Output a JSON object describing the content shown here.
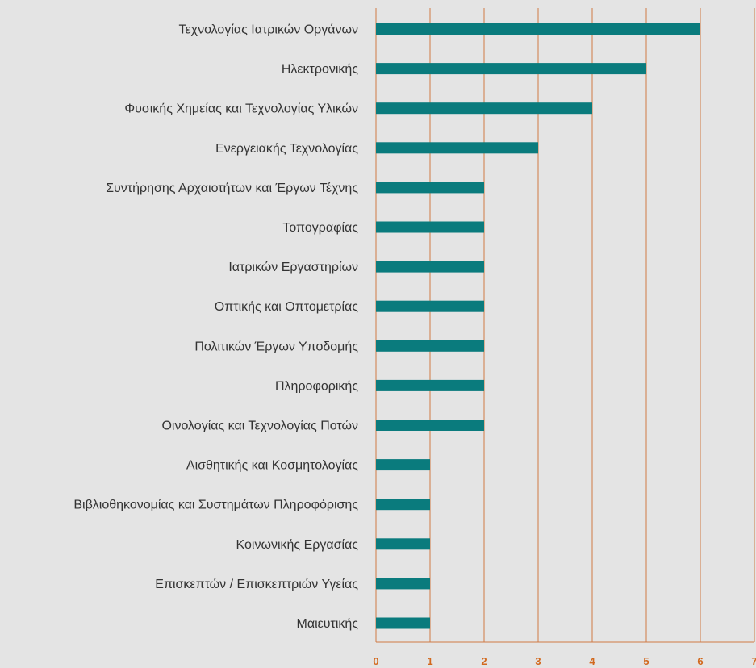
{
  "chart_data": {
    "type": "bar",
    "orientation": "horizontal",
    "categories": [
      "Τεχνολογίας Ιατρικών Οργάνων",
      "Ηλεκτρονικής",
      "Φυσικής Χημείας και Τεχνολογίας Υλικών",
      "Ενεργειακής Τεχνολογίας",
      "Συντήρησης Αρχαιοτήτων και Έργων Τέχνης",
      "Τοπογραφίας",
      "Ιατρικών Εργαστηρίων",
      "Οπτικής και Οπτομετρίας",
      "Πολιτικών Έργων Υποδομής",
      "Πληροφορικής",
      "Οινολογίας και Τεχνολογίας Ποτών",
      "Αισθητικής και Κοσμητολογίας",
      "Βιβλιοθηκονομίας και Συστημάτων Πληροφόρισης",
      "Κοινωνικής Εργασίας",
      "Επισκεπτών / Επισκεπτριών Υγείας",
      "Μαιευτικής"
    ],
    "values": [
      6,
      5,
      4,
      3,
      2,
      2,
      2,
      2,
      2,
      2,
      2,
      1,
      1,
      1,
      1,
      1
    ],
    "x_ticks": [
      "0",
      "1",
      "2",
      "3",
      "4",
      "5",
      "6",
      "7"
    ],
    "xlim": [
      0,
      7
    ],
    "grid": true,
    "legend": "none",
    "title": "",
    "xlabel": "",
    "ylabel": "",
    "colors": {
      "bar": "#0a7b7d",
      "grid": "#d07a45",
      "tick_label": "#d2691e",
      "background": "#e4e4e4",
      "label": "#333333"
    }
  }
}
